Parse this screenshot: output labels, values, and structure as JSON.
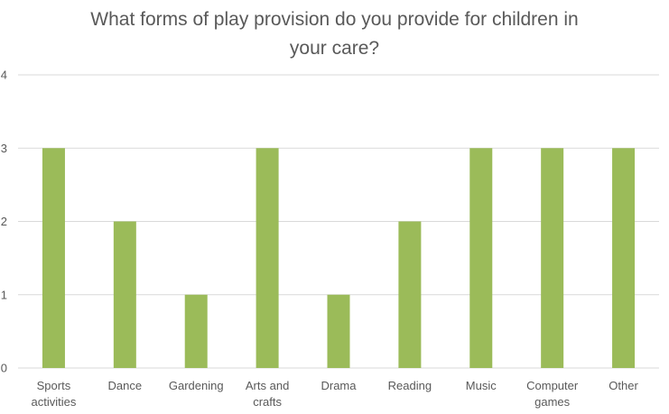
{
  "chart_data": {
    "type": "bar",
    "title_lines": [
      "What forms of play provision do you provide for children in",
      "your care?"
    ],
    "categories": [
      [
        "Sports",
        "activities"
      ],
      [
        "Dance"
      ],
      [
        "Gardening"
      ],
      [
        "Arts and",
        "crafts"
      ],
      [
        "Drama"
      ],
      [
        "Reading"
      ],
      [
        "Music"
      ],
      [
        "Computer",
        "games"
      ],
      [
        "Other"
      ]
    ],
    "values": [
      3,
      2,
      1,
      3,
      1,
      2,
      3,
      3,
      3
    ],
    "ylim": [
      0,
      4
    ],
    "yticks": [
      0,
      1,
      2,
      3,
      4
    ],
    "grid": true,
    "bar_color": "#9bbb59",
    "grid_color": "#d9d9d9"
  }
}
